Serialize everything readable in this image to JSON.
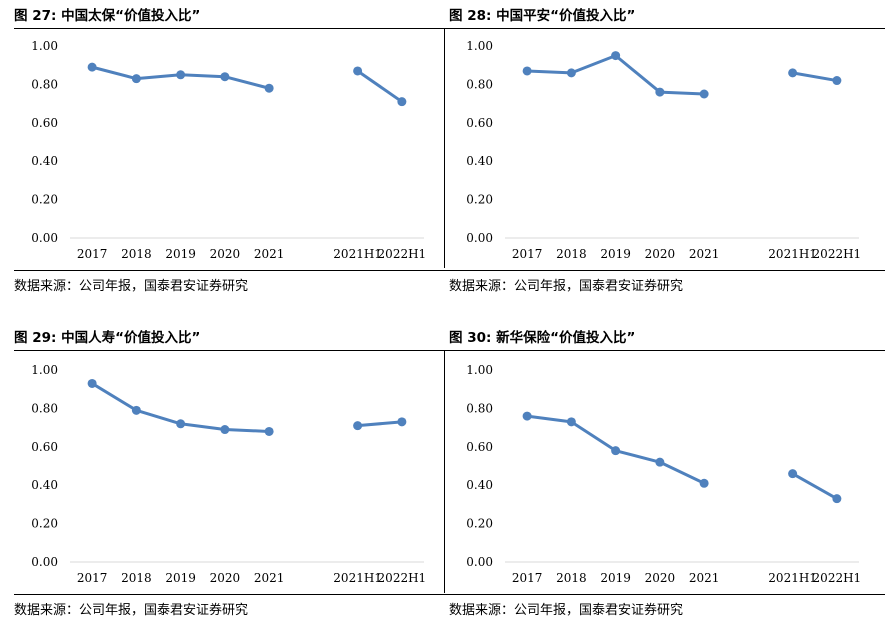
{
  "chart_data": [
    {
      "type": "line",
      "figure_label": "图 27:",
      "title": "中国太保“价值投入比”",
      "categories": [
        "2017",
        "2018",
        "2019",
        "2020",
        "2021",
        "",
        "2021H1",
        "2022H1"
      ],
      "series": [
        {
          "values": [
            0.89,
            0.83,
            0.85,
            0.84,
            0.78,
            null,
            0.87,
            0.71
          ]
        }
      ],
      "ylim": [
        0,
        1.0
      ],
      "yticks": [
        "0.00",
        "0.20",
        "0.40",
        "0.60",
        "0.80",
        "1.00"
      ],
      "grid": false,
      "source": "数据来源：公司年报，国泰君安证券研究"
    },
    {
      "type": "line",
      "figure_label": "图 28:",
      "title": "中国平安“价值投入比”",
      "categories": [
        "2017",
        "2018",
        "2019",
        "2020",
        "2021",
        "",
        "2021H1",
        "2022H1"
      ],
      "series": [
        {
          "values": [
            0.87,
            0.86,
            0.95,
            0.76,
            0.75,
            null,
            0.86,
            0.82
          ]
        }
      ],
      "ylim": [
        0,
        1.0
      ],
      "yticks": [
        "0.00",
        "0.20",
        "0.40",
        "0.60",
        "0.80",
        "1.00"
      ],
      "grid": false,
      "source": "数据来源：公司年报，国泰君安证券研究"
    },
    {
      "type": "line",
      "figure_label": "图 29:",
      "title": "中国人寿“价值投入比”",
      "categories": [
        "2017",
        "2018",
        "2019",
        "2020",
        "2021",
        "",
        "2021H1",
        "2022H1"
      ],
      "series": [
        {
          "values": [
            0.93,
            0.79,
            0.72,
            0.69,
            0.68,
            null,
            0.71,
            0.73
          ]
        }
      ],
      "ylim": [
        0,
        1.0
      ],
      "yticks": [
        "0.00",
        "0.20",
        "0.40",
        "0.60",
        "0.80",
        "1.00"
      ],
      "grid": false,
      "source": "数据来源：公司年报，国泰君安证券研究"
    },
    {
      "type": "line",
      "figure_label": "图 30:",
      "title": "新华保险“价值投入比”",
      "categories": [
        "2017",
        "2018",
        "2019",
        "2020",
        "2021",
        "",
        "2021H1",
        "2022H1"
      ],
      "series": [
        {
          "values": [
            0.76,
            0.73,
            0.58,
            0.52,
            0.41,
            null,
            0.46,
            0.33
          ]
        }
      ],
      "ylim": [
        0,
        1.0
      ],
      "yticks": [
        "0.00",
        "0.20",
        "0.40",
        "0.60",
        "0.80",
        "1.00"
      ],
      "grid": false,
      "source": "数据来源：公司年报，国泰君安证券研究"
    }
  ],
  "colors": {
    "line": "#4f81bd",
    "rule": "#000000"
  }
}
